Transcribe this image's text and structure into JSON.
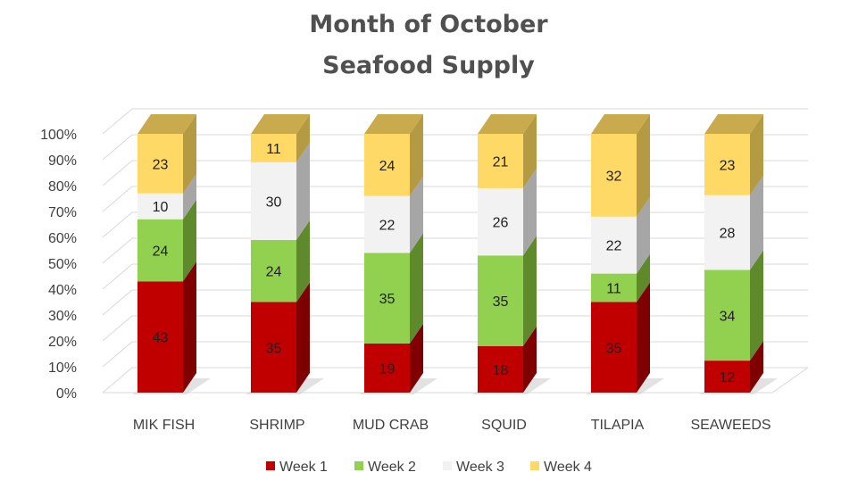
{
  "chart_data": {
    "type": "bar",
    "stacked": "percent",
    "three_d": true,
    "title": [
      "Month of October",
      "Seafood Supply"
    ],
    "categories": [
      "MIK FISH",
      "SHRIMP",
      "MUD CRAB",
      "SQUID",
      "TILAPIA",
      "SEAWEEDS"
    ],
    "series": [
      {
        "name": "Week 1",
        "values": [
          43,
          35,
          19,
          18,
          35,
          12
        ],
        "color": "#c00000",
        "side": "#7f0000",
        "top": "#a00000"
      },
      {
        "name": "Week 2",
        "values": [
          24,
          24,
          35,
          35,
          11,
          34
        ],
        "color": "#92d050",
        "side": "#5e8a2c",
        "top": "#76ad3a"
      },
      {
        "name": "Week 3",
        "values": [
          10,
          30,
          22,
          26,
          22,
          28
        ],
        "color": "#f2f2f2",
        "side": "#a6a6a6",
        "top": "#d0d0d0"
      },
      {
        "name": "Week 4",
        "values": [
          23,
          11,
          24,
          21,
          32,
          23
        ],
        "color": "#ffd966",
        "side": "#b59a44",
        "top": "#c9ab4d"
      }
    ],
    "y_ticks": [
      "0%",
      "10%",
      "20%",
      "30%",
      "40%",
      "50%",
      "60%",
      "70%",
      "80%",
      "90%",
      "100%"
    ],
    "ylim": [
      0,
      100
    ],
    "grid": true,
    "legend_position": "bottom"
  }
}
